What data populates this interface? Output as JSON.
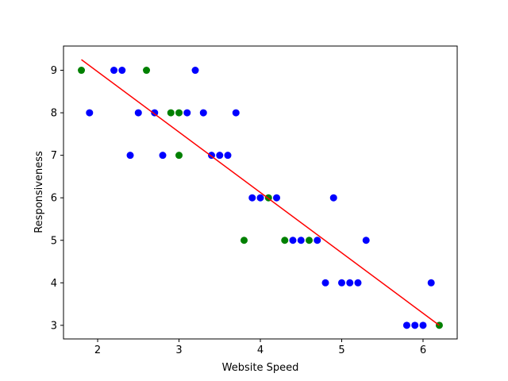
{
  "chart_data": {
    "type": "scatter",
    "title": "",
    "xlabel": "Website Speed",
    "ylabel": "Responsiveness",
    "xlim": [
      1.58,
      6.42
    ],
    "ylim": [
      2.68,
      9.57
    ],
    "xticks": [
      2,
      3,
      4,
      5,
      6
    ],
    "yticks": [
      3,
      4,
      5,
      6,
      7,
      8,
      9
    ],
    "grid": false,
    "legend": "none",
    "series": [
      {
        "color": "#0000ff",
        "points": [
          [
            1.9,
            8
          ],
          [
            2.2,
            9
          ],
          [
            2.3,
            9
          ],
          [
            2.4,
            7
          ],
          [
            2.5,
            8
          ],
          [
            2.7,
            8
          ],
          [
            2.8,
            7
          ],
          [
            3.1,
            8
          ],
          [
            3.2,
            9
          ],
          [
            3.3,
            8
          ],
          [
            3.4,
            7
          ],
          [
            3.5,
            7
          ],
          [
            3.6,
            7
          ],
          [
            3.7,
            8
          ],
          [
            3.9,
            6
          ],
          [
            4.0,
            6
          ],
          [
            4.2,
            6
          ],
          [
            4.4,
            5
          ],
          [
            4.5,
            5
          ],
          [
            4.7,
            5
          ],
          [
            4.8,
            4
          ],
          [
            4.9,
            6
          ],
          [
            5.0,
            4
          ],
          [
            5.1,
            4
          ],
          [
            5.2,
            4
          ],
          [
            5.3,
            5
          ],
          [
            5.8,
            3
          ],
          [
            5.9,
            3
          ],
          [
            6.0,
            3
          ],
          [
            6.1,
            4
          ]
        ]
      },
      {
        "color": "#008000",
        "points": [
          [
            1.8,
            9
          ],
          [
            2.6,
            9
          ],
          [
            2.9,
            8
          ],
          [
            3.0,
            8
          ],
          [
            3.0,
            7
          ],
          [
            3.8,
            5
          ],
          [
            4.1,
            6
          ],
          [
            4.3,
            5
          ],
          [
            4.6,
            5
          ],
          [
            6.2,
            3
          ]
        ]
      }
    ],
    "fit_line": {
      "color": "#ff0000",
      "points": [
        [
          1.8,
          9.25
        ],
        [
          6.2,
          3.0
        ]
      ]
    }
  }
}
